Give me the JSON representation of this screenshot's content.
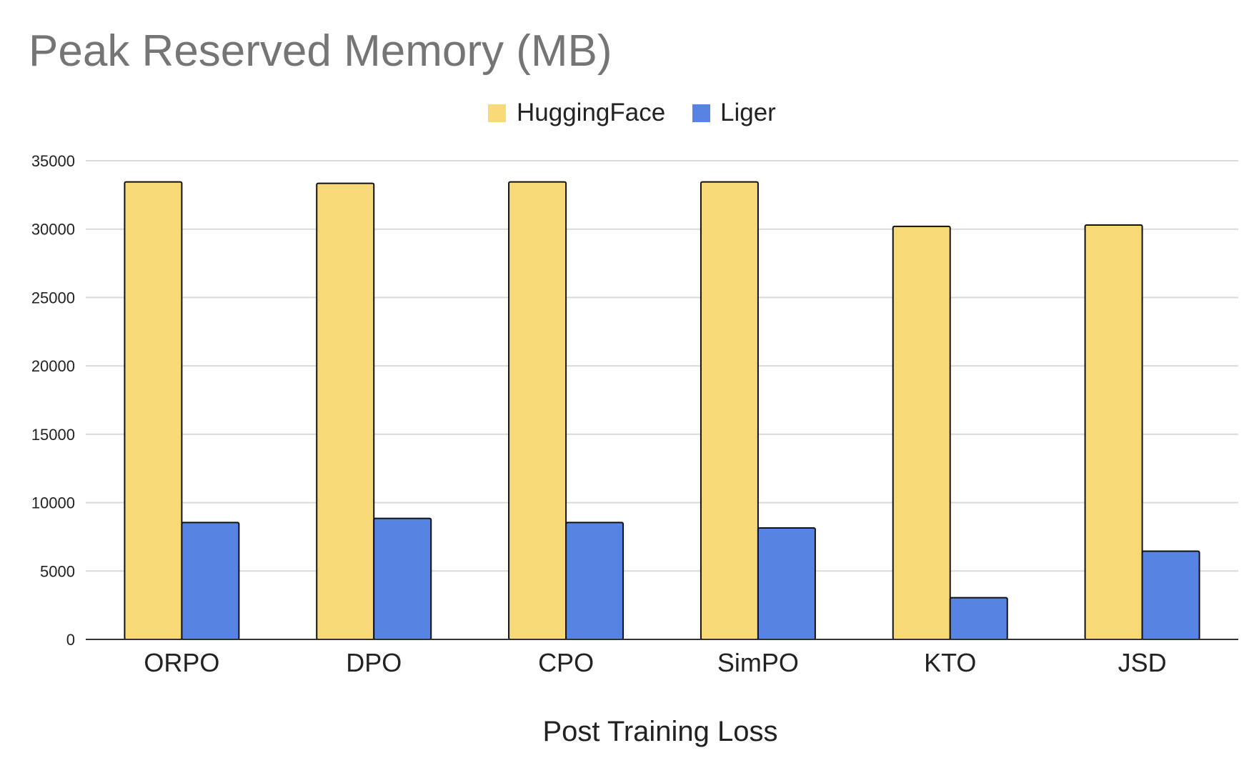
{
  "chart_data": {
    "type": "bar",
    "title": "Peak Reserved Memory (MB)",
    "xlabel": "Post Training Loss",
    "ylabel": "",
    "categories": [
      "ORPO",
      "DPO",
      "CPO",
      "SimPO",
      "KTO",
      "JSD"
    ],
    "series": [
      {
        "name": "HuggingFace",
        "color": "#F7D977",
        "values": [
          33450,
          33350,
          33450,
          33450,
          30200,
          30300
        ]
      },
      {
        "name": "Liger",
        "color": "#5784E2",
        "values": [
          8550,
          8850,
          8550,
          8150,
          3050,
          6450
        ]
      }
    ],
    "ylim": [
      0,
      35000
    ],
    "yticks": [
      0,
      5000,
      10000,
      15000,
      20000,
      25000,
      30000,
      35000
    ],
    "grid": true,
    "legend_position": "top-center"
  }
}
